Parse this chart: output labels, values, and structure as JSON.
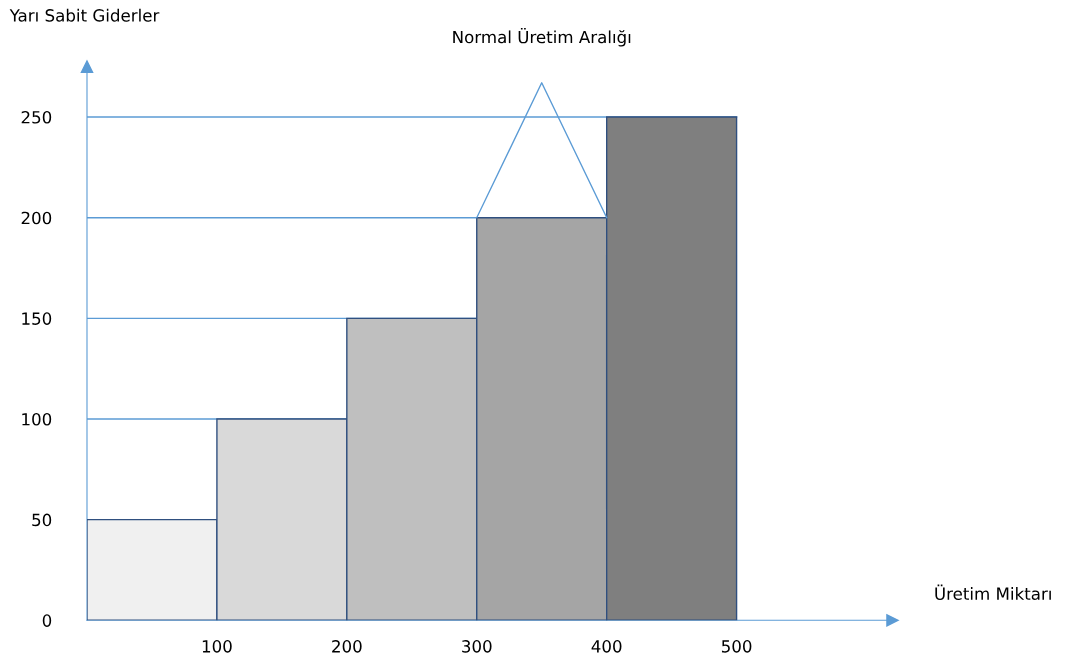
{
  "chart_data": {
    "type": "histogram",
    "xlabel": "Üretim Miktarı",
    "ylabel": "Yarı Sabit Giderler",
    "bins": [
      0,
      100,
      200,
      300,
      400,
      500
    ],
    "values": [
      50,
      100,
      150,
      200,
      250
    ],
    "colors": [
      "#f0f0f0",
      "#d9d9d9",
      "#bfbfbf",
      "#a5a5a5",
      "#7f7f7f"
    ],
    "xlim": [
      0,
      620
    ],
    "ylim": [
      0,
      275
    ],
    "xticks": [
      100,
      200,
      300,
      400,
      500
    ],
    "yticks": [
      0,
      50,
      100,
      150,
      200,
      250
    ],
    "ref_lines": [
      {
        "axis": "y",
        "value": 100,
        "color": "#5b9bd5"
      },
      {
        "axis": "y",
        "value": 150,
        "color": "#5b9bd5"
      },
      {
        "axis": "y",
        "value": 200,
        "color": "#5b9bd5"
      },
      {
        "axis": "y",
        "value": 250,
        "color": "#5b9bd5"
      }
    ],
    "annotations": [
      "Normal Üretim Aralığı"
    ],
    "grid": false
  }
}
